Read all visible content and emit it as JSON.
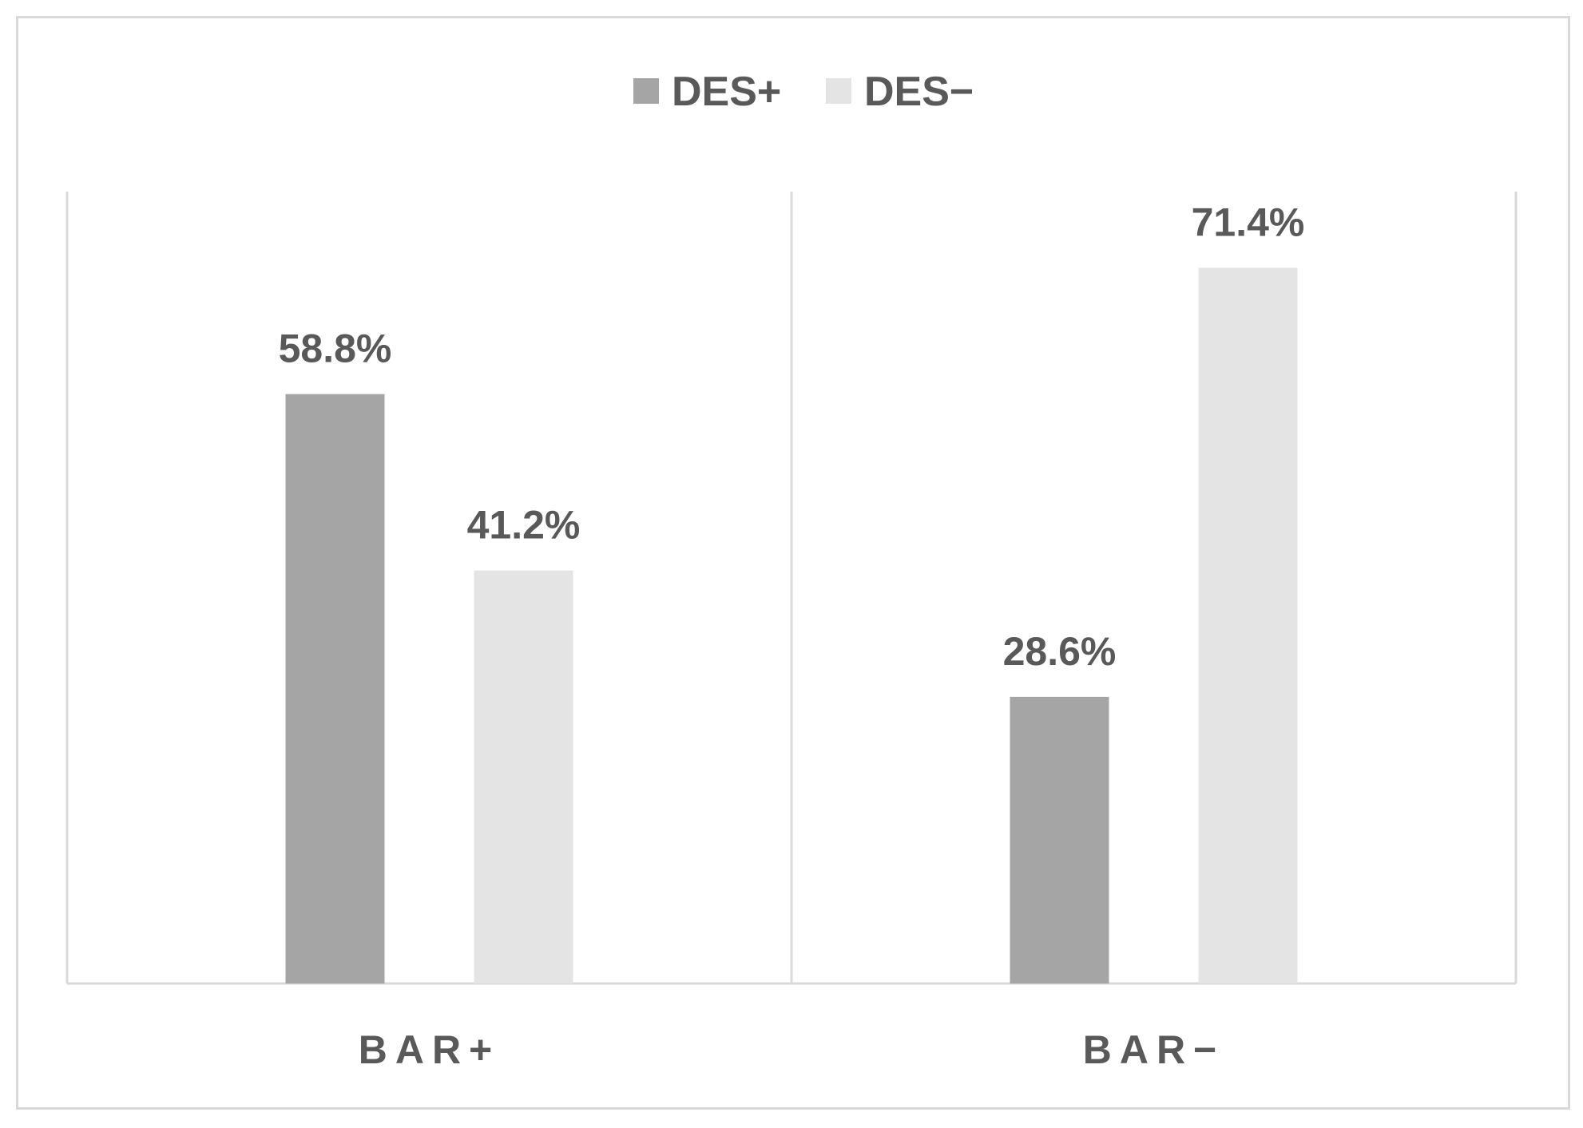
{
  "chart_data": {
    "type": "bar",
    "categories": [
      "BAR+",
      "BAR−"
    ],
    "series": [
      {
        "name": "DES+",
        "color": "#a5a5a5",
        "values": [
          58.8,
          28.6
        ],
        "labels": [
          "58.8%",
          "28.6%"
        ]
      },
      {
        "name": "DES−",
        "color": "#e4e4e4",
        "values": [
          41.2,
          71.4
        ],
        "labels": [
          "41.2%",
          "71.4%"
        ]
      }
    ],
    "ylim": [
      0,
      100
    ],
    "legend_position": "top-center",
    "grid": false,
    "axis_color": "#d9d9d9",
    "text_color": "#595959"
  }
}
